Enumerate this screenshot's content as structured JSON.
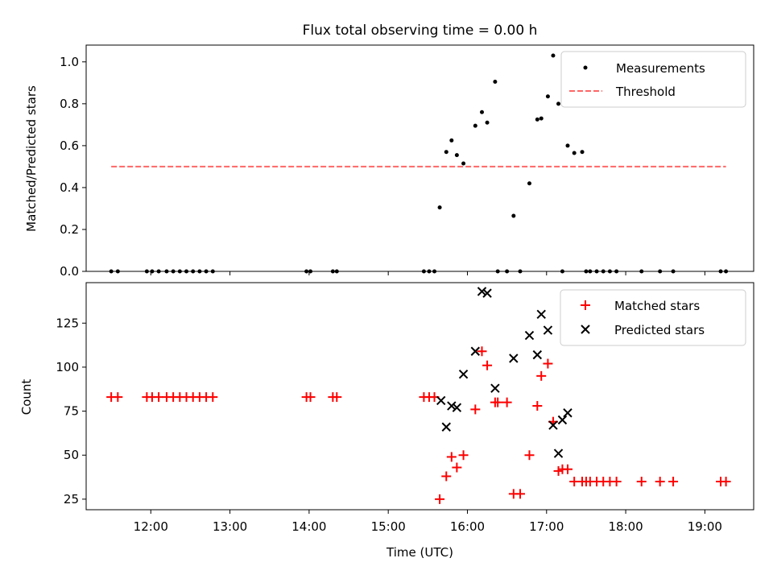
{
  "figure": {
    "title": "Flux total observing time = 0.00 h",
    "xlabel": "Time (UTC)",
    "x_tick_labels": [
      "12:00",
      "13:00",
      "14:00",
      "15:00",
      "16:00",
      "17:00",
      "18:00",
      "19:00"
    ]
  },
  "chart_data": [
    {
      "type": "scatter",
      "ylabel": "Matched/Predicted stars",
      "xlim": [
        "11:11",
        "19:37"
      ],
      "ylim": [
        0,
        1.08
      ],
      "y_ticks": [
        "0.0",
        "0.2",
        "0.4",
        "0.6",
        "0.8",
        "1.0"
      ],
      "grid": false,
      "legend": "top-right",
      "series": [
        {
          "name": "Measurements",
          "marker": "dot",
          "color": "#000000",
          "x": [
            "11:30",
            "11:35",
            "11:57",
            "12:01",
            "12:06",
            "12:12",
            "12:17",
            "12:22",
            "12:27",
            "12:32",
            "12:37",
            "12:42",
            "12:47",
            "13:58",
            "14:01",
            "14:18",
            "14:21",
            "15:27",
            "15:31",
            "15:35",
            "15:39",
            "15:44",
            "15:48",
            "15:52",
            "15:57",
            "16:06",
            "16:11",
            "16:15",
            "16:21",
            "16:23",
            "16:30",
            "16:35",
            "16:40",
            "16:47",
            "16:53",
            "16:56",
            "17:01",
            "17:05",
            "17:09",
            "17:12",
            "17:16",
            "17:21",
            "17:27",
            "17:30",
            "17:33",
            "17:38",
            "17:43",
            "17:48",
            "17:53",
            "18:12",
            "18:26",
            "18:36",
            "19:12",
            "19:16"
          ],
          "y": [
            0,
            0,
            0,
            0,
            0,
            0,
            0,
            0,
            0,
            0,
            0,
            0,
            0,
            0,
            0,
            0,
            0,
            0,
            0,
            0,
            0.305,
            0.57,
            0.625,
            0.555,
            0.515,
            0.695,
            0.76,
            0.71,
            0.905,
            0,
            0,
            0.265,
            0,
            0.42,
            0.725,
            0.73,
            0.835,
            1.03,
            0.8,
            0,
            0.6,
            0.565,
            0.57,
            0,
            0,
            0,
            0,
            0,
            0,
            0,
            0,
            0,
            0,
            0
          ]
        },
        {
          "name": "Threshold",
          "style": "dashed",
          "color": "#ff6666",
          "x": [
            "11:30",
            "19:16"
          ],
          "y": [
            0.5,
            0.5
          ]
        }
      ]
    },
    {
      "type": "scatter",
      "ylabel": "Count",
      "xlim": [
        "11:11",
        "19:37"
      ],
      "ylim": [
        19,
        148
      ],
      "y_ticks": [
        "25",
        "50",
        "75",
        "100",
        "125"
      ],
      "grid": false,
      "legend": "top-right",
      "series": [
        {
          "name": "Matched stars",
          "marker": "plus",
          "color": "#ff0000",
          "x": [
            "11:30",
            "11:35",
            "11:57",
            "12:01",
            "12:06",
            "12:12",
            "12:17",
            "12:22",
            "12:27",
            "12:32",
            "12:37",
            "12:42",
            "12:47",
            "13:58",
            "14:01",
            "14:18",
            "14:21",
            "15:27",
            "15:31",
            "15:35",
            "15:39",
            "15:44",
            "15:48",
            "15:52",
            "15:57",
            "16:06",
            "16:11",
            "16:15",
            "16:21",
            "16:23",
            "16:30",
            "16:35",
            "16:40",
            "16:47",
            "16:53",
            "16:56",
            "17:01",
            "17:05",
            "17:09",
            "17:12",
            "17:16",
            "17:21",
            "17:27",
            "17:30",
            "17:33",
            "17:38",
            "17:43",
            "17:48",
            "17:53",
            "18:12",
            "18:26",
            "18:36",
            "19:12",
            "19:16"
          ],
          "y": [
            83,
            83,
            83,
            83,
            83,
            83,
            83,
            83,
            83,
            83,
            83,
            83,
            83,
            83,
            83,
            83,
            83,
            83,
            83,
            83,
            25,
            38,
            49,
            43,
            50,
            76,
            109,
            101,
            80,
            80,
            80,
            28,
            28,
            50,
            78,
            95,
            102,
            69,
            41,
            42,
            42,
            35,
            35,
            35,
            35,
            35,
            35,
            35,
            35,
            35,
            35,
            35,
            35,
            35
          ]
        },
        {
          "name": "Predicted stars",
          "marker": "x",
          "color": "#000000",
          "x": [
            "15:40",
            "15:44",
            "15:48",
            "15:52",
            "15:57",
            "16:06",
            "16:11",
            "16:15",
            "16:21",
            "16:35",
            "16:47",
            "16:53",
            "16:56",
            "17:01",
            "17:05",
            "17:09",
            "17:12",
            "17:16"
          ],
          "y": [
            81,
            66,
            78,
            77,
            96,
            109,
            143,
            142,
            88,
            105,
            118,
            107,
            130,
            121,
            67,
            51,
            70,
            74
          ]
        }
      ]
    }
  ]
}
